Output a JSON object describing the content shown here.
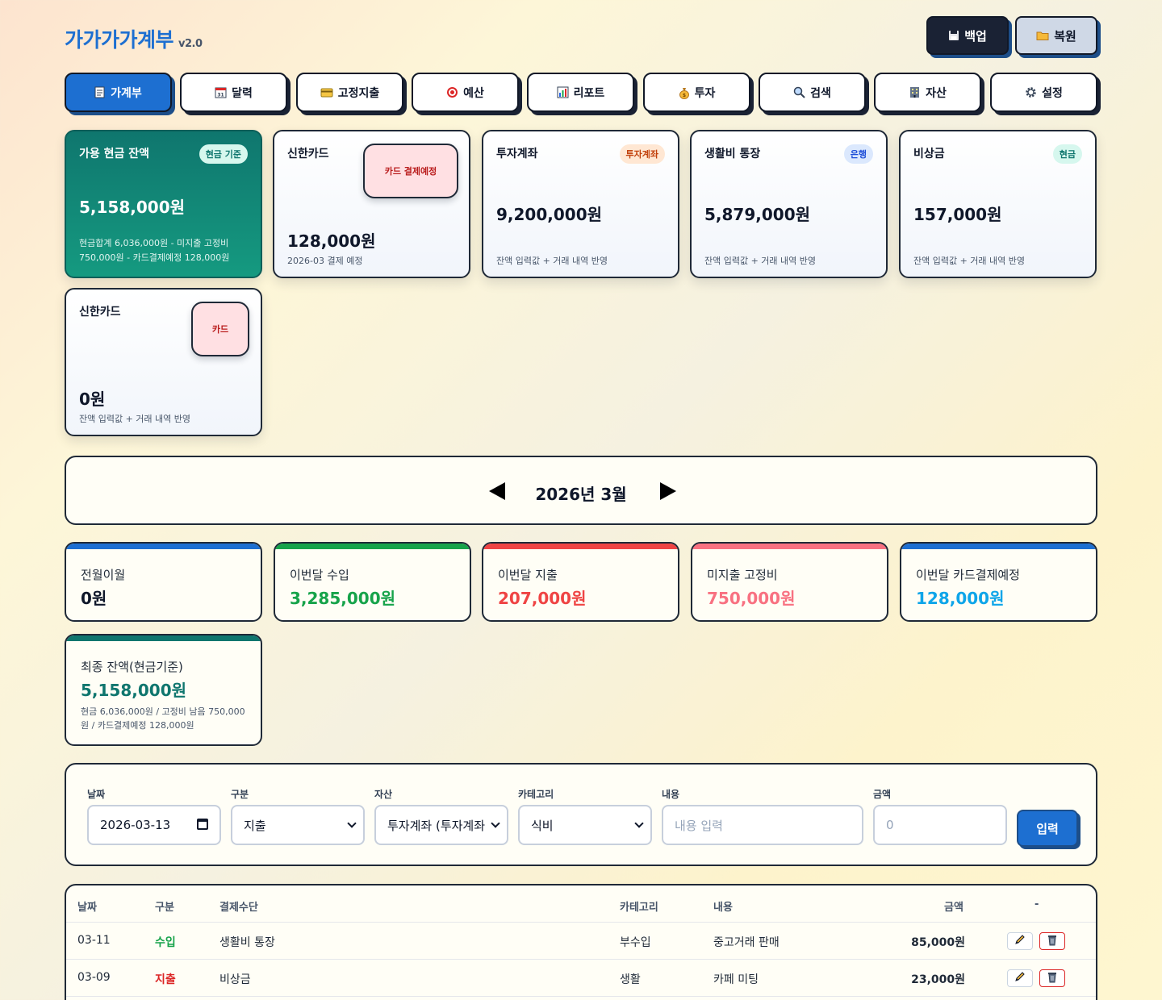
{
  "header": {
    "title": "가가가가계부",
    "version": "v2.0",
    "backup_label": "백업",
    "restore_label": "복원"
  },
  "tabs": [
    {
      "label": "가계부",
      "icon": "memo-icon",
      "active": true
    },
    {
      "label": "달력",
      "icon": "calendar-icon"
    },
    {
      "label": "고정지출",
      "icon": "credit-card-icon"
    },
    {
      "label": "예산",
      "icon": "target-icon"
    },
    {
      "label": "리포트",
      "icon": "bar-chart-icon"
    },
    {
      "label": "투자",
      "icon": "money-bag-icon"
    },
    {
      "label": "검색",
      "icon": "search-icon"
    },
    {
      "label": "자산",
      "icon": "building-icon"
    },
    {
      "label": "설정",
      "icon": "gear-icon"
    }
  ],
  "accounts": {
    "cash": {
      "name": "가용 현금 잔액",
      "badge": "현금 기준",
      "amount": "5,158,000원",
      "note": "현금합계 6,036,000원 - 미지출 고정비 750,000원 - 카드결제예정 128,000원"
    },
    "shinhan1": {
      "name": "신한카드",
      "box": "카드 결제예정",
      "amount": "128,000원",
      "note": "2026-03 결제 예정"
    },
    "invest": {
      "name": "투자계좌",
      "badge": "투자계좌",
      "amount": "9,200,000원",
      "note": "잔액 입력값 + 거래 내역 반영"
    },
    "living": {
      "name": "생활비 통장",
      "badge": "은행",
      "amount": "5,879,000원",
      "note": "잔액 입력값 + 거래 내역 반영"
    },
    "emergency": {
      "name": "비상금",
      "badge": "현금",
      "amount": "157,000원",
      "note": "잔액 입력값 + 거래 내역 반영"
    },
    "shinhan2": {
      "name": "신한카드",
      "box": "카드",
      "amount": "0원",
      "note": "잔액 입력값 + 거래 내역 반영"
    }
  },
  "month": {
    "label": "2026년 3월"
  },
  "stats": {
    "carry": {
      "label": "전월이월",
      "value": "0원"
    },
    "income": {
      "label": "이번달 수입",
      "value": "3,285,000원"
    },
    "expense": {
      "label": "이번달 지출",
      "value": "207,000원"
    },
    "fixed": {
      "label": "미지출 고정비",
      "value": "750,000원"
    },
    "card": {
      "label": "이번달 카드결제예정",
      "value": "128,000원"
    },
    "final": {
      "label": "최종 잔액(현금기준)",
      "value": "5,158,000원",
      "note": "현금 6,036,000원 / 고정비 남음 750,000원 / 카드결제예정 128,000원"
    }
  },
  "form": {
    "date_label": "날짜",
    "date_value": "2026-03-13",
    "type_label": "구분",
    "type_value": "지출",
    "asset_label": "자산",
    "asset_value": "투자계좌 (투자계좌",
    "category_label": "카테고리",
    "category_value": "식비",
    "desc_label": "내용",
    "desc_placeholder": "내용 입력",
    "amount_label": "금액",
    "amount_placeholder": "0",
    "submit_label": "입력"
  },
  "table": {
    "headers": {
      "date": "날짜",
      "type": "구분",
      "method": "결제수단",
      "category": "카테고리",
      "desc": "내용",
      "amount": "금액",
      "actions": "-"
    },
    "rows": [
      {
        "date": "03-11",
        "type": "수입",
        "method": "생활비 통장",
        "category": "부수입",
        "desc": "중고거래 판매",
        "amount": "85,000원"
      },
      {
        "date": "03-09",
        "type": "지출",
        "method": "비상금",
        "category": "생활",
        "desc": "카페 미팅",
        "amount": "23,000원"
      },
      {
        "date": "",
        "type": "",
        "method": "",
        "category": "",
        "desc": "",
        "amount": ""
      }
    ]
  },
  "colors": {
    "primary": "#1d6fd1",
    "cash_card": "#0f766e",
    "income": "#16a34a",
    "expense": "#ef4444",
    "fixed": "#f87181",
    "card": "#0ea5e9",
    "final": "#0f766e"
  }
}
